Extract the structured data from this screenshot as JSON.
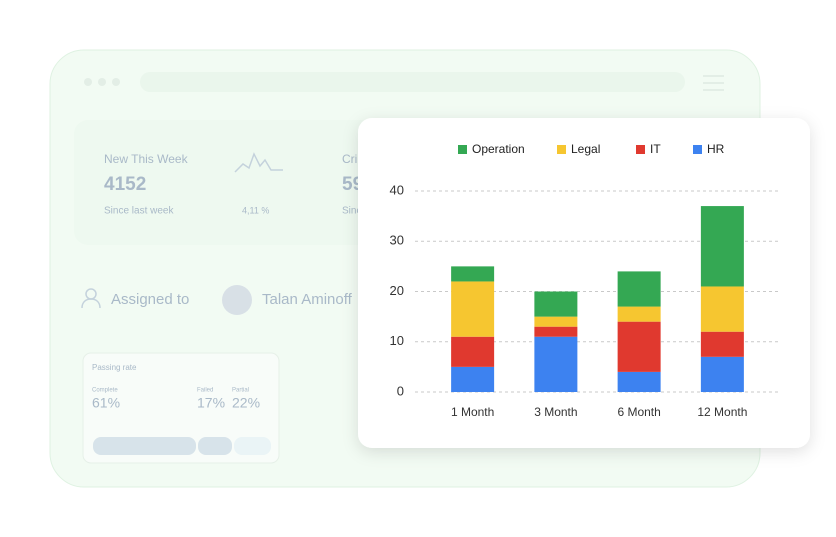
{
  "dashboard": {
    "stat1": {
      "label": "New This Week",
      "value": "4152",
      "note": "Since last week",
      "change": "4,11 %"
    },
    "stat2": {
      "label": "Cri",
      "value": "59",
      "note": "Sinc"
    },
    "assigned": {
      "label": "Assigned to",
      "name": "Talan Aminoff"
    },
    "passing": {
      "title": "Passing rate",
      "items": [
        {
          "label": "Complete",
          "value": "61%"
        },
        {
          "label": "Failed",
          "value": "17%"
        },
        {
          "label": "Partial",
          "value": "22%"
        }
      ]
    }
  },
  "chart_data": {
    "type": "stacked-bar",
    "categories": [
      "1 Month",
      "3 Month",
      "6 Month",
      "12 Month"
    ],
    "series": [
      {
        "name": "Operation",
        "color": "#34a853",
        "values": [
          3,
          5,
          7,
          16
        ]
      },
      {
        "name": "Legal",
        "color": "#f6c630",
        "values": [
          11,
          2,
          3,
          9
        ]
      },
      {
        "name": "IT",
        "color": "#e0392f",
        "values": [
          6,
          2,
          10,
          5
        ]
      },
      {
        "name": "HR",
        "color": "#3d82f0",
        "values": [
          5,
          11,
          4,
          7
        ]
      }
    ],
    "ylim": [
      0,
      40
    ],
    "yticks": [
      0,
      10,
      20,
      30,
      40
    ],
    "grid": true,
    "legend": "top"
  }
}
